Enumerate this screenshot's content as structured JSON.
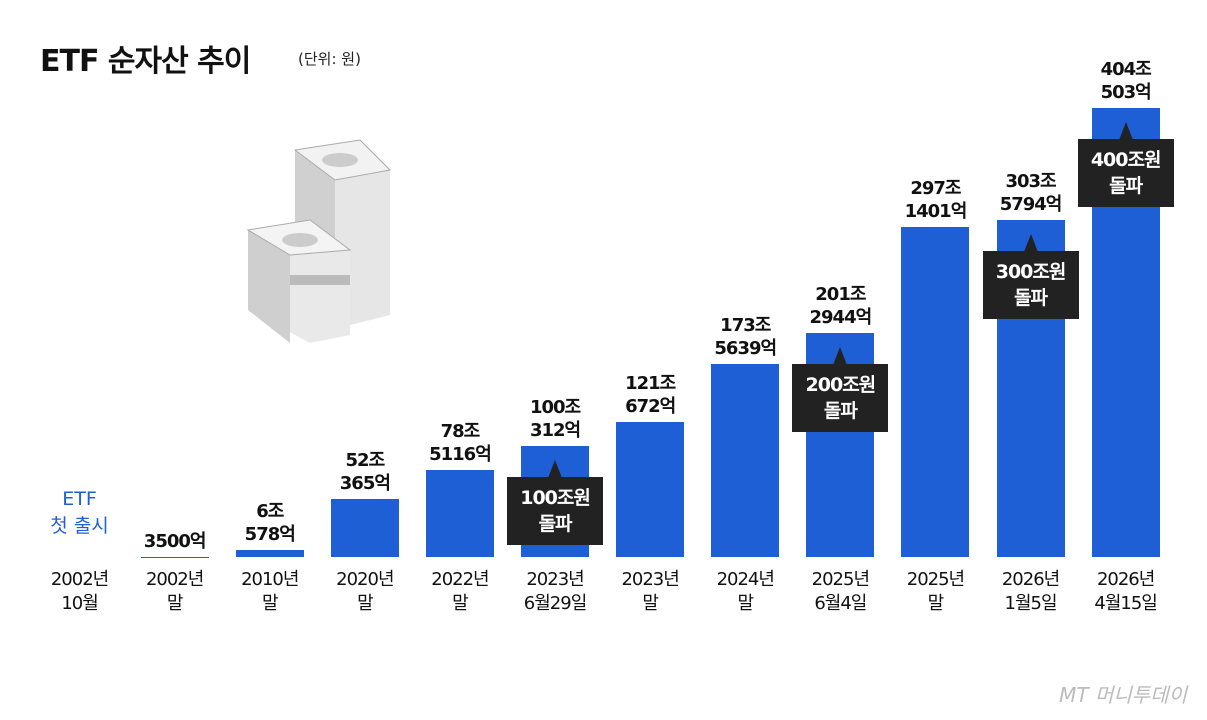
{
  "chart_data": {
    "type": "bar",
    "title": "ETF 순자산 추이",
    "subtitle": "(단위: 원)",
    "color": "#1f5fd6",
    "categories": [
      "2002년\n10월",
      "2002년\n말",
      "2010년\n말",
      "2020년\n말",
      "2022년\n말",
      "2023년\n6월29일",
      "2023년\n말",
      "2024년\n말",
      "2025년\n6월4일",
      "2025년\n말",
      "2026년\n1월5일",
      "2026년\n4월15일"
    ],
    "values": [
      null,
      3500,
      60578,
      520365,
      785116,
      1000312,
      1210672,
      1735639,
      2012944,
      2971401,
      3035794,
      4040503
    ],
    "value_labels": [
      null,
      "3500억",
      "6조\n578억",
      "52조\n365억",
      "78조\n5116억",
      "100조\n312억",
      "121조\n672억",
      "173조\n5639억",
      "201조\n2944억",
      "297조\n1401억",
      "303조\n5794억",
      "404조\n503억"
    ],
    "launch_note": {
      "category": "2002년\n10월",
      "text": "ETF\n첫 출시"
    },
    "milestones": [
      {
        "category": "2023년\n6월29일",
        "text": "100조원\n돌파"
      },
      {
        "category": "2025년\n6월4일",
        "text": "200조원\n돌파"
      },
      {
        "category": "2026년\n1월5일",
        "text": "300조원\n돌파"
      },
      {
        "category": "2026년\n4월15일",
        "text": "400조원\n돌파"
      }
    ],
    "source": "MT 머니투데이"
  }
}
